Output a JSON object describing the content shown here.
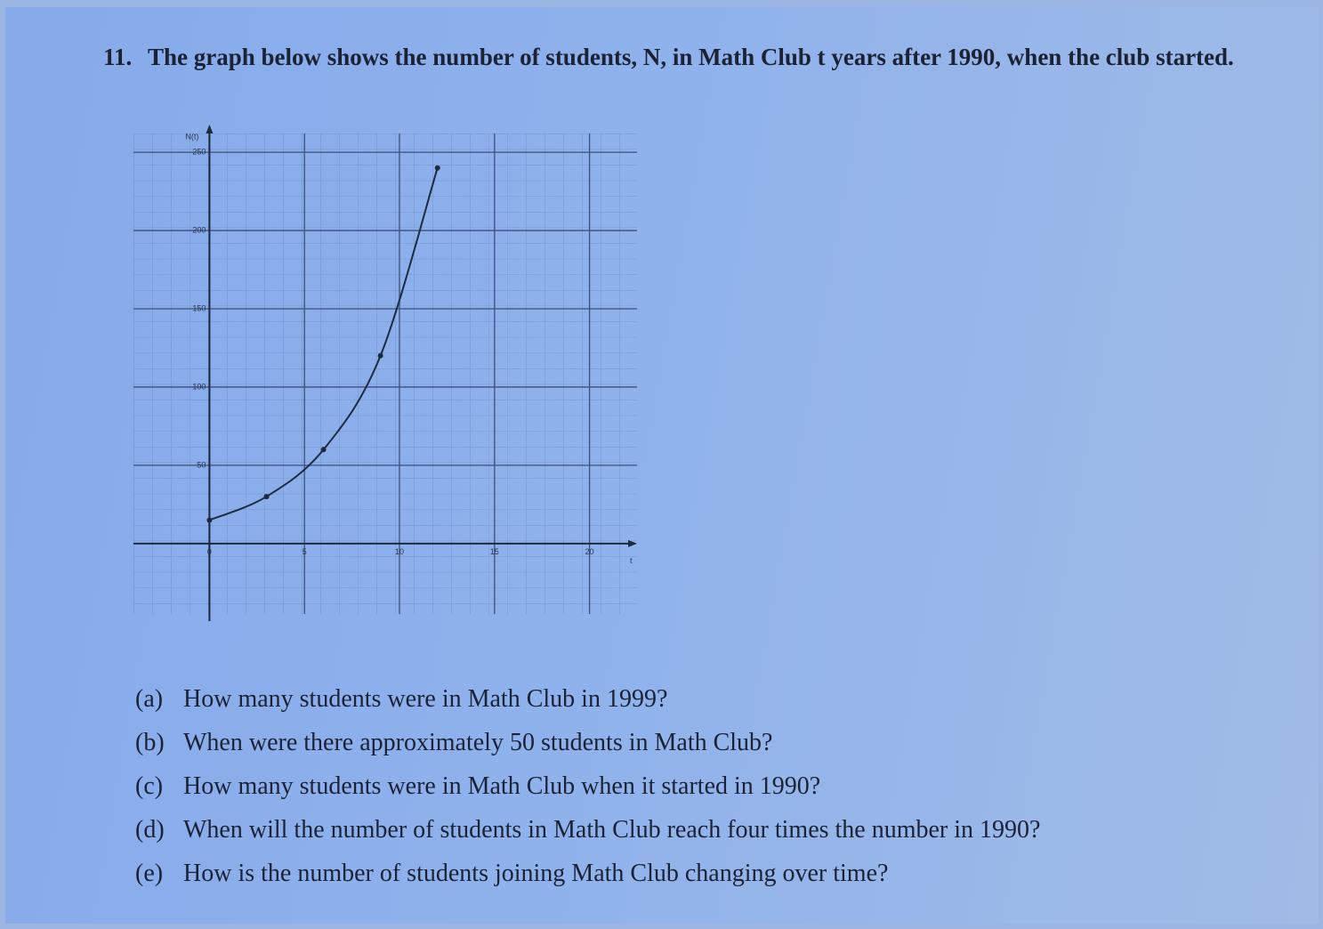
{
  "question": {
    "number": "11.",
    "text": "The graph below shows the number of students, N, in Math Club t years after 1990, when the club started."
  },
  "chart_data": {
    "type": "line",
    "x_label": "t",
    "y_label": "N(t)",
    "x": [
      0,
      3,
      6,
      9,
      12
    ],
    "series": [
      {
        "name": "N(t)",
        "color": "#1e2a40",
        "values": [
          15,
          30,
          60,
          120,
          240
        ]
      }
    ],
    "xlim": [
      -4,
      22.5
    ],
    "ylim": [
      -45,
      262
    ],
    "xticks": [
      0,
      5,
      10,
      15,
      20
    ],
    "yticks": [
      50,
      100,
      150,
      200,
      250
    ],
    "grid": true
  },
  "parts": [
    {
      "label": "(a)",
      "text": "How many students were in Math Club in 1999?"
    },
    {
      "label": "(b)",
      "text": "When were there approximately 50 students in Math Club?"
    },
    {
      "label": "(c)",
      "text": "How many students were in Math Club when it started in 1990?"
    },
    {
      "label": "(d)",
      "text": "When will the number of students in Math Club reach four times the number in 1990?"
    },
    {
      "label": "(e)",
      "text": "How is the number of students joining Math Club changing over time?"
    }
  ]
}
